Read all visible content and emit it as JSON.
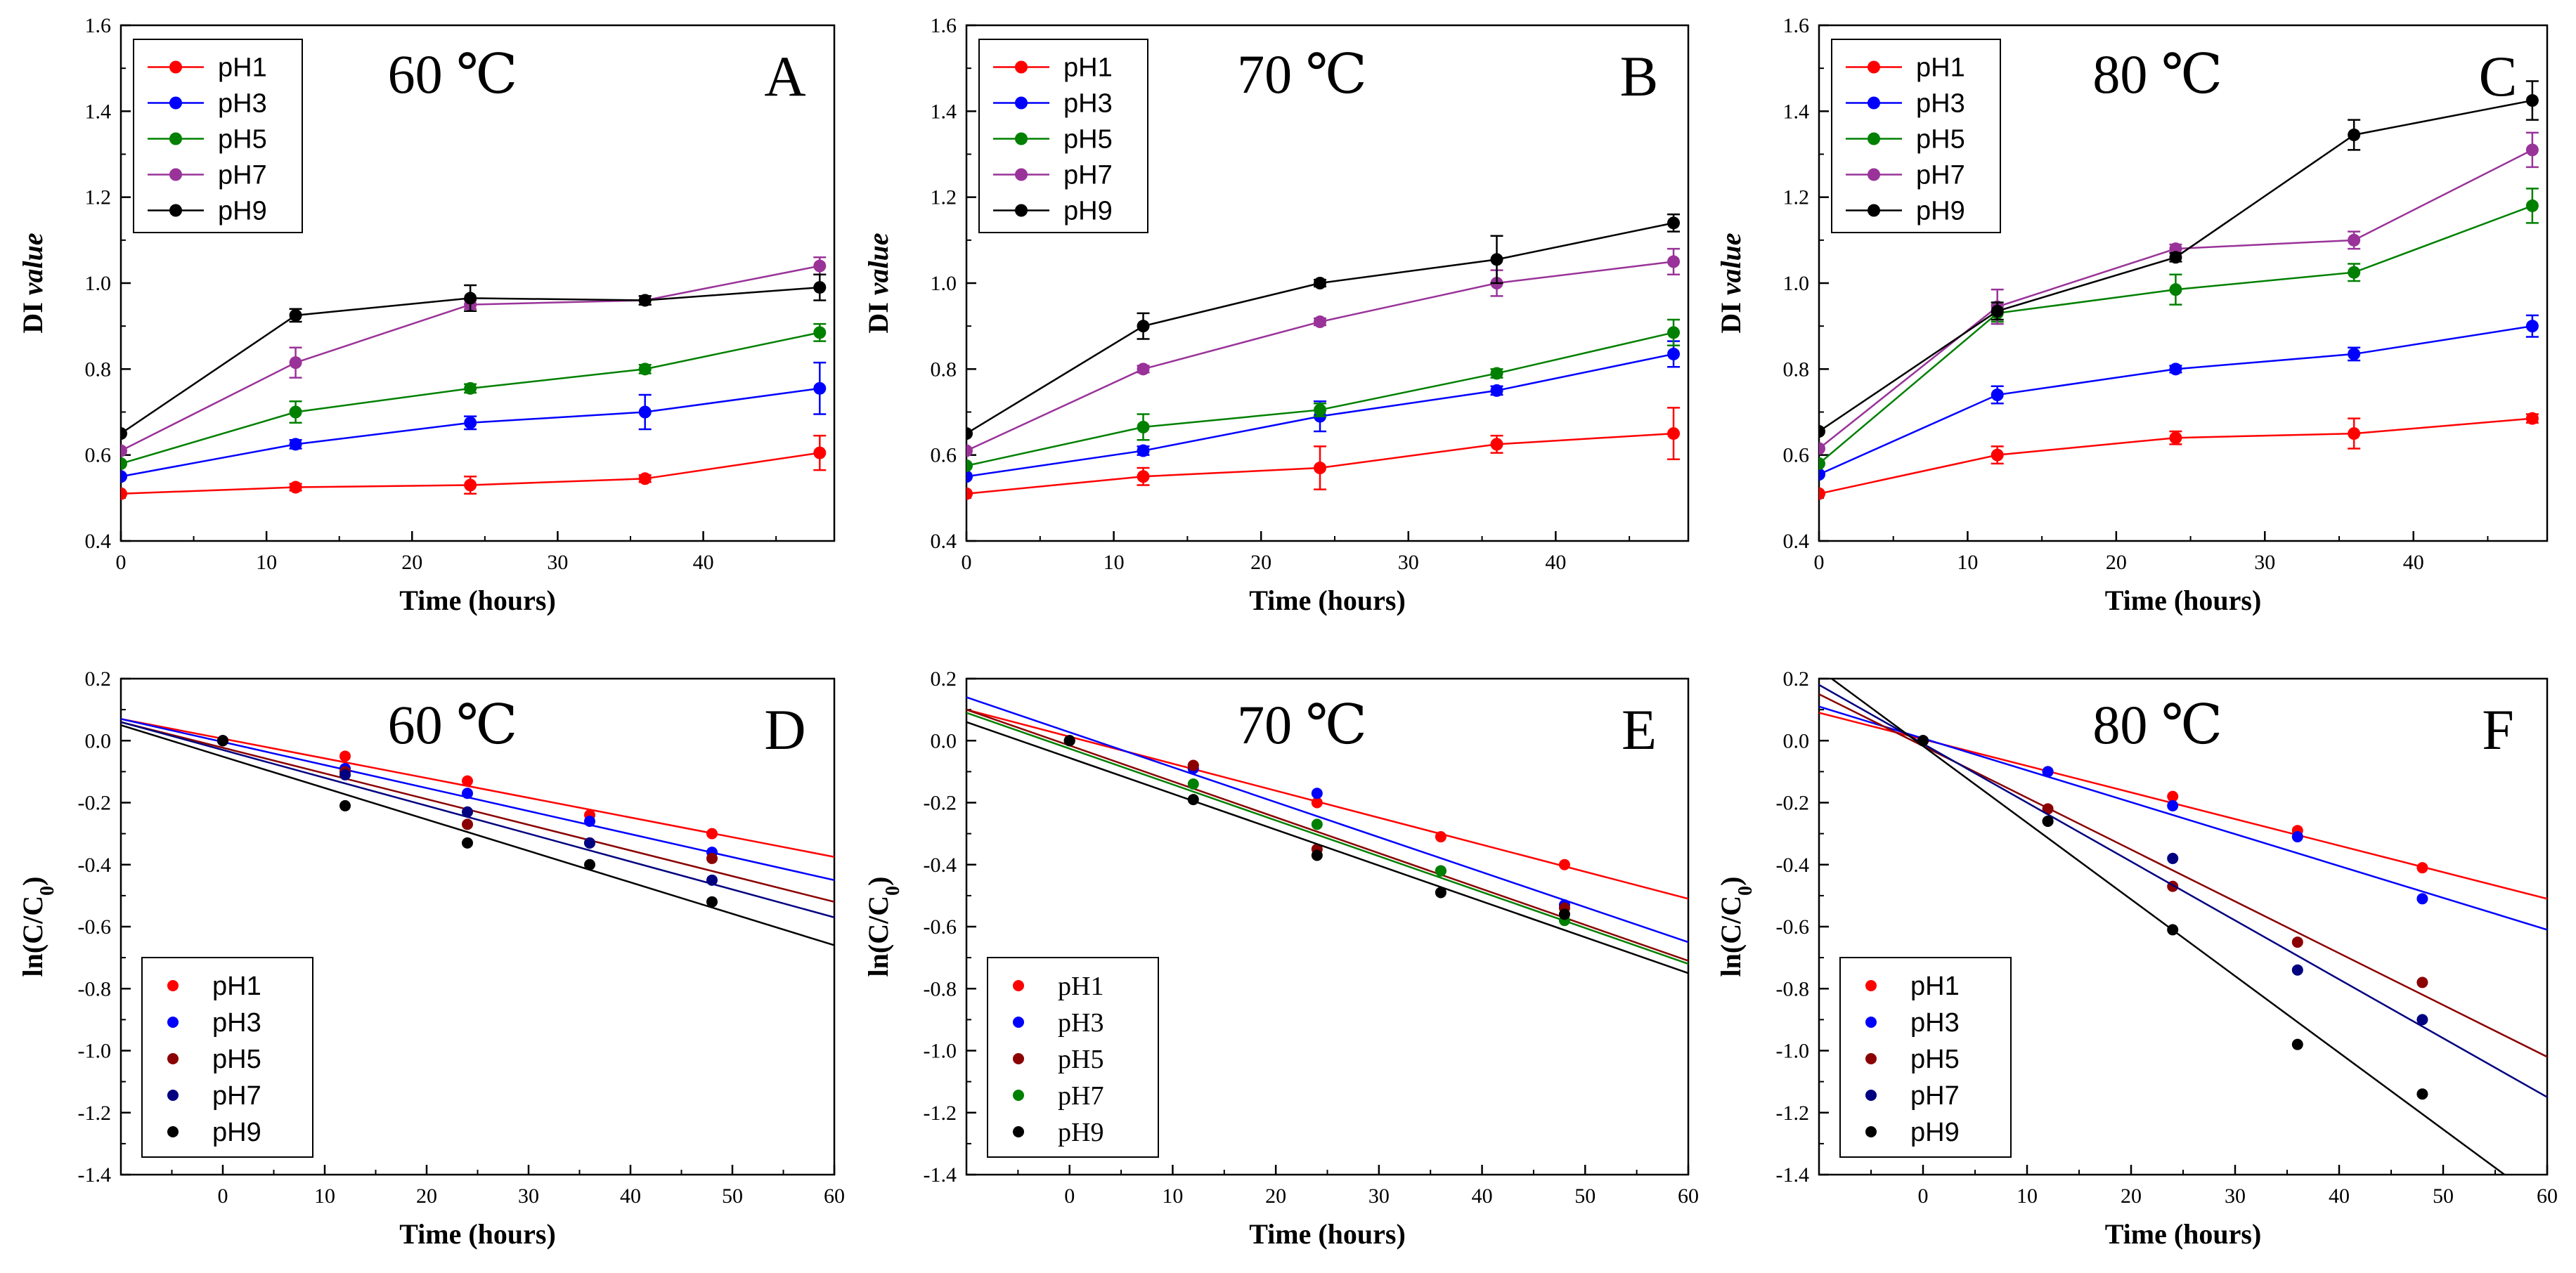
{
  "chart_data": [
    {
      "panel": "A",
      "type": "line",
      "temperature": "60 ℃",
      "xlabel": "Time (hours)",
      "ylabel": "DI value",
      "xlim": [
        0,
        48
      ],
      "ylim": [
        0.4,
        1.6
      ],
      "xticks": [
        "0",
        "10",
        "20",
        "30",
        "40"
      ],
      "yticks": [
        "0.4",
        "0.6",
        "0.8",
        "1.0",
        "1.2",
        "1.4",
        "1.6"
      ],
      "legend_position": "top-left",
      "x": [
        0,
        12,
        24,
        36,
        48
      ],
      "series": [
        {
          "name": "pH1",
          "color": "#ff0000",
          "values": [
            0.51,
            0.525,
            0.53,
            0.545,
            0.605
          ],
          "errors": [
            0.0,
            0.008,
            0.02,
            0.008,
            0.04
          ]
        },
        {
          "name": "pH3",
          "color": "#0000ff",
          "values": [
            0.55,
            0.625,
            0.675,
            0.7,
            0.755
          ],
          "errors": [
            0.0,
            0.01,
            0.015,
            0.04,
            0.06
          ]
        },
        {
          "name": "pH5",
          "color": "#008000",
          "values": [
            0.58,
            0.7,
            0.755,
            0.8,
            0.885
          ],
          "errors": [
            0.0,
            0.025,
            0.01,
            0.01,
            0.02
          ]
        },
        {
          "name": "pH7",
          "color": "#993399",
          "values": [
            0.61,
            0.815,
            0.95,
            0.96,
            1.04
          ],
          "errors": [
            0.0,
            0.035,
            0.01,
            0.01,
            0.02
          ]
        },
        {
          "name": "pH9",
          "color": "#000000",
          "values": [
            0.65,
            0.925,
            0.965,
            0.96,
            0.99
          ],
          "errors": [
            0.0,
            0.015,
            0.03,
            0.01,
            0.03
          ]
        }
      ]
    },
    {
      "panel": "B",
      "type": "line",
      "temperature": "70 ℃",
      "xlabel": "Time (hours)",
      "ylabel": "DI value",
      "xlim": [
        0,
        48
      ],
      "ylim": [
        0.4,
        1.6
      ],
      "xticks": [
        "0",
        "10",
        "20",
        "30",
        "40"
      ],
      "yticks": [
        "0.4",
        "0.6",
        "0.8",
        "1.0",
        "1.2",
        "1.4",
        "1.6"
      ],
      "legend_position": "top-left",
      "x": [
        0,
        12,
        24,
        36,
        48
      ],
      "series": [
        {
          "name": "pH1",
          "color": "#ff0000",
          "values": [
            0.51,
            0.55,
            0.57,
            0.625,
            0.65
          ],
          "errors": [
            0.0,
            0.02,
            0.05,
            0.02,
            0.06
          ]
        },
        {
          "name": "pH3",
          "color": "#0000ff",
          "values": [
            0.55,
            0.61,
            0.69,
            0.75,
            0.835
          ],
          "errors": [
            0.0,
            0.01,
            0.035,
            0.01,
            0.03
          ]
        },
        {
          "name": "pH5",
          "color": "#008000",
          "values": [
            0.575,
            0.665,
            0.705,
            0.79,
            0.885
          ],
          "errors": [
            0.0,
            0.03,
            0.015,
            0.01,
            0.03
          ]
        },
        {
          "name": "pH7",
          "color": "#993399",
          "values": [
            0.61,
            0.8,
            0.91,
            1.0,
            1.05
          ],
          "errors": [
            0.0,
            0.008,
            0.008,
            0.03,
            0.03
          ]
        },
        {
          "name": "pH9",
          "color": "#000000",
          "values": [
            0.65,
            0.9,
            1.0,
            1.055,
            1.14
          ],
          "errors": [
            0.0,
            0.03,
            0.008,
            0.055,
            0.02
          ]
        }
      ]
    },
    {
      "panel": "C",
      "type": "line",
      "temperature": "80 ℃",
      "xlabel": "Time (hours)",
      "ylabel": "DI value",
      "xlim": [
        0,
        48
      ],
      "ylim": [
        0.4,
        1.6
      ],
      "xticks": [
        "0",
        "10",
        "20",
        "30",
        "40"
      ],
      "yticks": [
        "0.4",
        "0.6",
        "0.8",
        "1.0",
        "1.2",
        "1.4",
        "1.6"
      ],
      "legend_position": "top-left",
      "x": [
        0,
        12,
        24,
        36,
        48
      ],
      "series": [
        {
          "name": "pH1",
          "color": "#ff0000",
          "values": [
            0.51,
            0.6,
            0.64,
            0.65,
            0.685
          ],
          "errors": [
            0.0,
            0.02,
            0.015,
            0.035,
            0.01
          ]
        },
        {
          "name": "pH3",
          "color": "#0000ff",
          "values": [
            0.555,
            0.74,
            0.8,
            0.835,
            0.9
          ],
          "errors": [
            0.0,
            0.02,
            0.008,
            0.015,
            0.025
          ]
        },
        {
          "name": "pH5",
          "color": "#008000",
          "values": [
            0.58,
            0.93,
            0.985,
            1.025,
            1.18
          ],
          "errors": [
            0.0,
            0.02,
            0.035,
            0.02,
            0.04
          ]
        },
        {
          "name": "pH7",
          "color": "#993399",
          "values": [
            0.615,
            0.945,
            1.08,
            1.1,
            1.31
          ],
          "errors": [
            0.0,
            0.04,
            0.01,
            0.02,
            0.04
          ]
        },
        {
          "name": "pH9",
          "color": "#000000",
          "values": [
            0.655,
            0.935,
            1.06,
            1.345,
            1.425
          ],
          "errors": [
            0.0,
            0.02,
            0.01,
            0.035,
            0.045
          ]
        }
      ]
    },
    {
      "panel": "D",
      "type": "scatter",
      "temperature": "60 ℃",
      "xlabel": "Time (hours)",
      "ylabel": "ln(C/C0)",
      "xlim": [
        -10,
        60
      ],
      "ylim": [
        -1.4,
        0.2
      ],
      "xticks": [
        "0",
        "10",
        "20",
        "30",
        "40",
        "50",
        "60"
      ],
      "yticks": [
        "-1.4",
        "-1.2",
        "-1.0",
        "-0.8",
        "-0.6",
        "-0.4",
        "-0.2",
        "0.0",
        "0.2"
      ],
      "legend_position": "bottom-left",
      "x": [
        0,
        12,
        24,
        36,
        48
      ],
      "series": [
        {
          "name": "pH1",
          "color": "#ff0000",
          "values": [
            0.0,
            -0.05,
            -0.13,
            -0.24,
            -0.3
          ],
          "fit": {
            "x1": -10,
            "y1": 0.07,
            "x2": 60,
            "y2": -0.375
          }
        },
        {
          "name": "pH3",
          "color": "#0000ff",
          "values": [
            0.0,
            -0.09,
            -0.17,
            -0.26,
            -0.36
          ],
          "fit": {
            "x1": -10,
            "y1": 0.07,
            "x2": 60,
            "y2": -0.45
          }
        },
        {
          "name": "pH5",
          "color": "#8b0000",
          "values": [
            0.0,
            -0.1,
            -0.27,
            -0.33,
            -0.38
          ],
          "fit": {
            "x1": -10,
            "y1": 0.06,
            "x2": 60,
            "y2": -0.52
          }
        },
        {
          "name": "pH7",
          "color": "#000080",
          "values": [
            0.0,
            -0.11,
            -0.23,
            -0.33,
            -0.45
          ],
          "fit": {
            "x1": -10,
            "y1": 0.06,
            "x2": 60,
            "y2": -0.57
          }
        },
        {
          "name": "pH9",
          "color": "#000000",
          "values": [
            0.0,
            -0.21,
            -0.33,
            -0.4,
            -0.52
          ],
          "fit": {
            "x1": -10,
            "y1": 0.05,
            "x2": 60,
            "y2": -0.66
          }
        }
      ]
    },
    {
      "panel": "E",
      "type": "scatter",
      "temperature": "70 ℃",
      "xlabel": "Time (hours)",
      "ylabel": "ln(C/C0)",
      "xlim": [
        -10,
        60
      ],
      "ylim": [
        -1.4,
        0.2
      ],
      "xticks": [
        "0",
        "10",
        "20",
        "30",
        "40",
        "50",
        "60"
      ],
      "yticks": [
        "-1.4",
        "-1.2",
        "-1.0",
        "-0.8",
        "-0.6",
        "-0.4",
        "-0.2",
        "0.0",
        "0.2"
      ],
      "legend_position": "bottom-left",
      "x": [
        0,
        12,
        24,
        36,
        48
      ],
      "series": [
        {
          "name": "pH1",
          "color": "#ff0000",
          "values": [
            0.0,
            -0.08,
            -0.2,
            -0.31,
            -0.4
          ],
          "fit": {
            "x1": -10,
            "y1": 0.1,
            "x2": 60,
            "y2": -0.51
          }
        },
        {
          "name": "pH3",
          "color": "#0000ff",
          "values": [
            0.0,
            -0.09,
            -0.17,
            -0.42,
            -0.53
          ],
          "fit": {
            "x1": -10,
            "y1": 0.14,
            "x2": 60,
            "y2": -0.65
          }
        },
        {
          "name": "pH5",
          "color": "#8b0000",
          "values": [
            0.0,
            -0.08,
            -0.35,
            -0.42,
            -0.54
          ],
          "fit": {
            "x1": -10,
            "y1": 0.1,
            "x2": 60,
            "y2": -0.71
          }
        },
        {
          "name": "pH7",
          "color": "#008000",
          "values": [
            0.0,
            -0.14,
            -0.27,
            -0.42,
            -0.58
          ],
          "fit": {
            "x1": -10,
            "y1": 0.09,
            "x2": 60,
            "y2": -0.72
          }
        },
        {
          "name": "pH9",
          "color": "#000000",
          "values": [
            0.0,
            -0.19,
            -0.37,
            -0.49,
            -0.56
          ],
          "fit": {
            "x1": -10,
            "y1": 0.06,
            "x2": 60,
            "y2": -0.75
          }
        }
      ]
    },
    {
      "panel": "F",
      "type": "scatter",
      "temperature": "80 ℃",
      "xlabel": "Time (hours)",
      "ylabel": "ln(C/C0)",
      "xlim": [
        -10,
        60
      ],
      "ylim": [
        -1.4,
        0.2
      ],
      "xticks": [
        "0",
        "10",
        "20",
        "30",
        "40",
        "50",
        "60"
      ],
      "yticks": [
        "-1.4",
        "-1.2",
        "-1.0",
        "-0.8",
        "-0.6",
        "-0.4",
        "-0.2",
        "0.0",
        "0.2"
      ],
      "legend_position": "bottom-left",
      "x": [
        0,
        12,
        24,
        36,
        48
      ],
      "series": [
        {
          "name": "pH1",
          "color": "#ff0000",
          "values": [
            0.0,
            -0.1,
            -0.18,
            -0.29,
            -0.41
          ],
          "fit": {
            "x1": -10,
            "y1": 0.09,
            "x2": 60,
            "y2": -0.51
          }
        },
        {
          "name": "pH3",
          "color": "#0000ff",
          "values": [
            0.0,
            -0.1,
            -0.21,
            -0.31,
            -0.51
          ],
          "fit": {
            "x1": -10,
            "y1": 0.11,
            "x2": 60,
            "y2": -0.61
          }
        },
        {
          "name": "pH5",
          "color": "#8b0000",
          "values": [
            0.0,
            -0.22,
            -0.47,
            -0.65,
            -0.78
          ],
          "fit": {
            "x1": -10,
            "y1": 0.15,
            "x2": 60,
            "y2": -1.02
          }
        },
        {
          "name": "pH7",
          "color": "#000080",
          "values": [
            0.0,
            -0.26,
            -0.38,
            -0.74,
            -0.9
          ],
          "fit": {
            "x1": -10,
            "y1": 0.18,
            "x2": 60,
            "y2": -1.15
          }
        },
        {
          "name": "pH9",
          "color": "#000000",
          "values": [
            0.0,
            -0.26,
            -0.61,
            -0.98,
            -1.14
          ],
          "fit": {
            "x1": -10,
            "y1": 0.23,
            "x2": 55.9,
            "y2": -1.4
          }
        }
      ]
    }
  ]
}
